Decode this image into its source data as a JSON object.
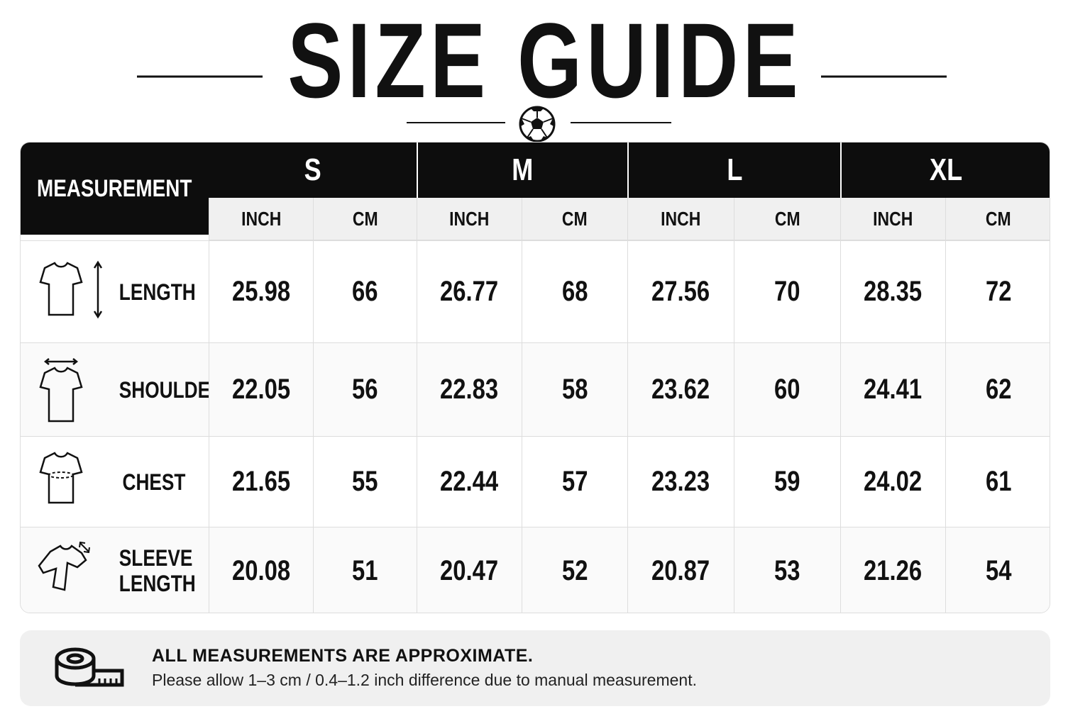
{
  "title": "SIZE GUIDE",
  "table": {
    "corner": "MEASUREMENT",
    "sizes": [
      {
        "name": "S",
        "units": [
          "INCH",
          "CM"
        ]
      },
      {
        "name": "M",
        "units": [
          "INCH",
          "CM"
        ]
      },
      {
        "name": "L",
        "units": [
          "INCH",
          "CM"
        ]
      },
      {
        "name": "XL",
        "units": [
          "INCH",
          "CM"
        ]
      }
    ],
    "rows": [
      {
        "label": "LENGTH",
        "values": [
          25.98,
          66,
          26.77,
          68,
          27.56,
          70,
          28.35,
          72
        ]
      },
      {
        "label": "SHOULDER",
        "values": [
          22.05,
          56,
          22.83,
          58,
          23.62,
          60,
          24.41,
          62
        ]
      },
      {
        "label": "CHEST",
        "values": [
          21.65,
          55,
          22.44,
          57,
          23.23,
          59,
          24.02,
          61
        ]
      },
      {
        "label": "SLEEVE LENGTH",
        "values": [
          20.08,
          51,
          20.47,
          52,
          20.87,
          53,
          21.26,
          54
        ]
      }
    ]
  },
  "note": {
    "heading": "ALL MEASUREMENTS ARE APPROXIMATE.",
    "text": "Please allow 1–3 cm / 0.4–1.2 inch difference due to manual measurement."
  }
}
